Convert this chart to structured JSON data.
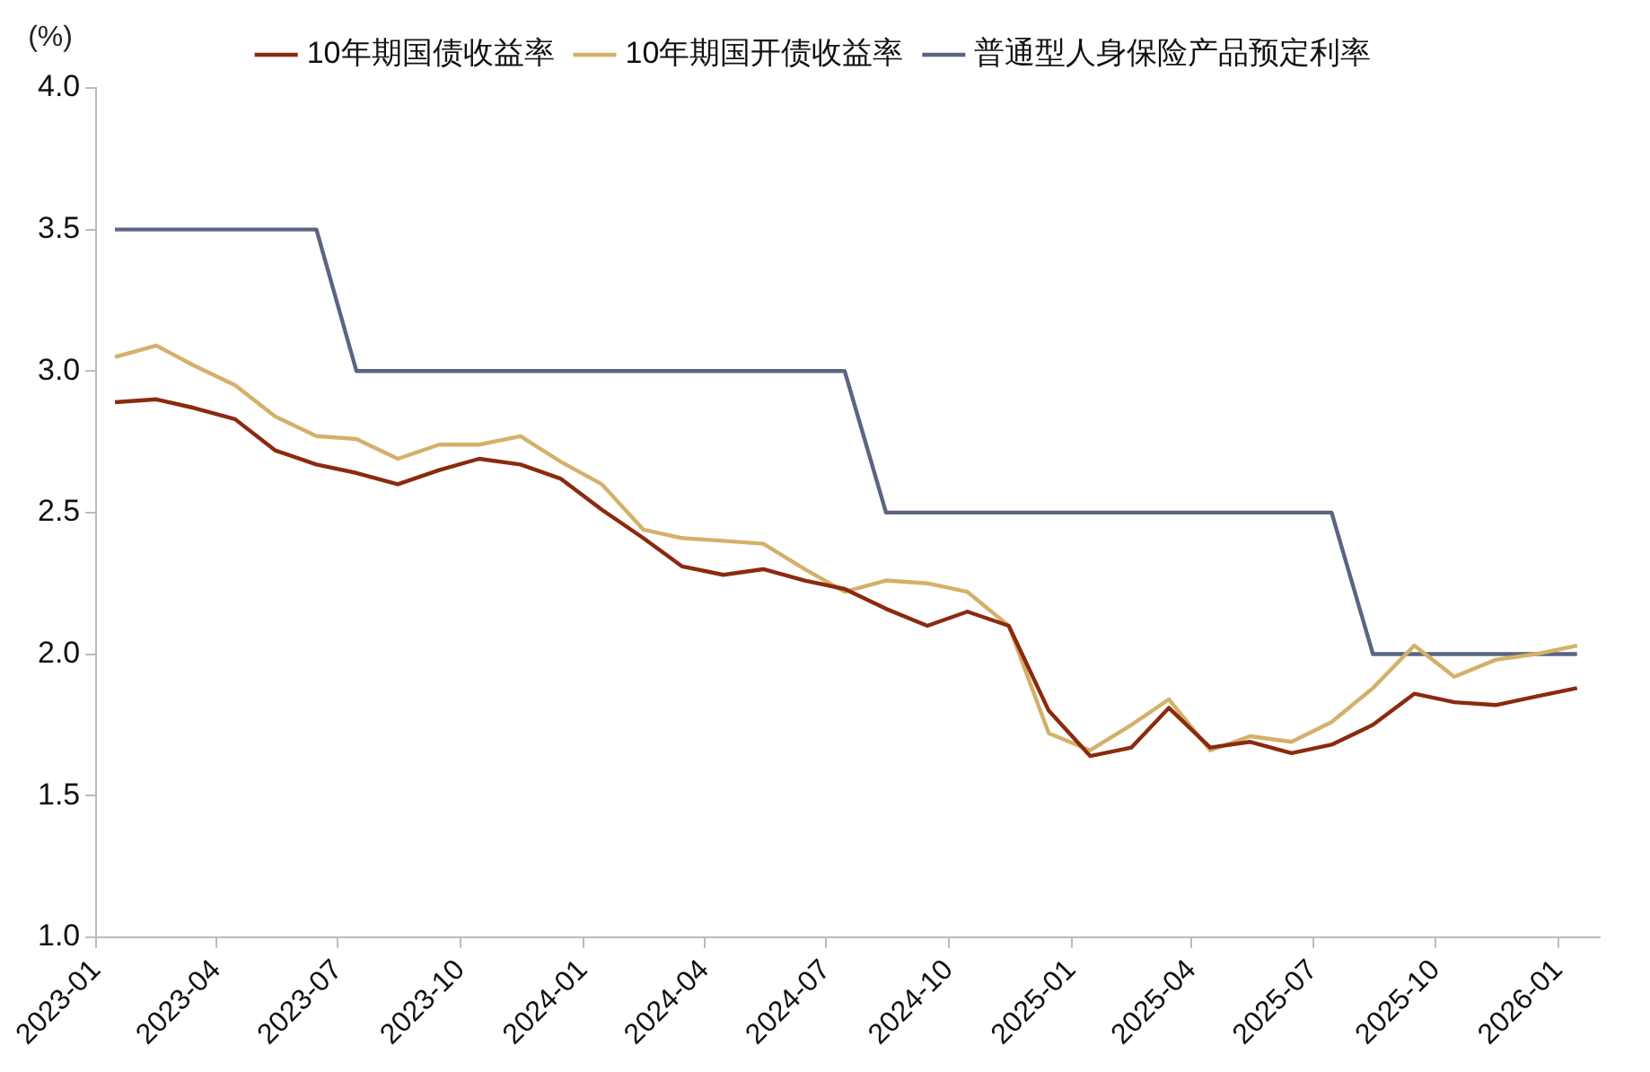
{
  "chart_data": {
    "type": "line",
    "ylabel": "(%)",
    "legend": "top",
    "grid": false,
    "marker": "none",
    "line_style": "solid",
    "x": [
      "2023-01-15",
      "2023-02-15",
      "2023-03-15",
      "2023-04-15",
      "2023-05-15",
      "2023-06-15",
      "2023-07-15",
      "2023-08-15",
      "2023-09-15",
      "2023-10-15",
      "2023-11-15",
      "2023-12-15",
      "2024-01-15",
      "2024-02-15",
      "2024-03-15",
      "2024-04-15",
      "2024-05-15",
      "2024-06-15",
      "2024-07-15",
      "2024-08-15",
      "2024-09-15",
      "2024-10-15",
      "2024-11-15",
      "2024-12-15",
      "2025-01-15",
      "2025-02-15",
      "2025-03-15",
      "2025-04-15",
      "2025-05-15",
      "2025-06-15",
      "2025-07-15",
      "2025-08-15",
      "2025-09-15",
      "2025-10-15",
      "2025-11-15",
      "2025-12-15",
      "2026-01-15"
    ],
    "xlim": [
      "2023-01-01",
      "2026-02-01"
    ],
    "xticks": [
      "2023-01",
      "2023-04",
      "2023-07",
      "2023-10",
      "2024-01",
      "2024-04",
      "2024-07",
      "2024-10",
      "2025-01",
      "2025-04",
      "2025-07",
      "2025-10",
      "2026-01"
    ],
    "ylim": [
      1.0,
      4.0
    ],
    "yticks": [
      {
        "value": 1,
        "label": "1.0"
      },
      {
        "value": 1.5,
        "label": "1.5"
      },
      {
        "value": 2,
        "label": "2.0"
      },
      {
        "value": 2.5,
        "label": "2.5"
      },
      {
        "value": 3,
        "label": "3.0"
      },
      {
        "value": 3.5,
        "label": "3.5"
      },
      {
        "value": 4,
        "label": "4.0"
      }
    ],
    "series": [
      {
        "name": "10年期国债收益率",
        "color": "#8b2a0e",
        "values": [
          2.89,
          2.9,
          2.87,
          2.83,
          2.72,
          2.67,
          2.64,
          2.6,
          2.65,
          2.69,
          2.67,
          2.62,
          2.51,
          2.41,
          2.31,
          2.28,
          2.3,
          2.26,
          2.23,
          2.16,
          2.1,
          2.15,
          2.1,
          1.8,
          1.64,
          1.67,
          1.81,
          1.67,
          1.69,
          1.65,
          1.68,
          1.75,
          1.86,
          1.83,
          1.82,
          1.85,
          1.88
        ]
      },
      {
        "name": "10年期国开债收益率",
        "color": "#d4b06a",
        "values": [
          3.05,
          3.09,
          3.02,
          2.95,
          2.84,
          2.77,
          2.76,
          2.69,
          2.74,
          2.74,
          2.77,
          2.68,
          2.6,
          2.44,
          2.41,
          2.4,
          2.39,
          2.3,
          2.22,
          2.26,
          2.25,
          2.22,
          2.1,
          1.72,
          1.66,
          1.75,
          1.84,
          1.66,
          1.71,
          1.69,
          1.76,
          1.88,
          2.03,
          1.92,
          1.98,
          2.0,
          2.03
        ]
      },
      {
        "name": "普通型人身保险产品预定利率",
        "color": "#5b6582",
        "values": [
          3.5,
          3.5,
          3.5,
          3.5,
          3.5,
          3.5,
          3.0,
          3.0,
          3.0,
          3.0,
          3.0,
          3.0,
          3.0,
          3.0,
          3.0,
          3.0,
          3.0,
          3.0,
          3.0,
          2.5,
          2.5,
          2.5,
          2.5,
          2.5,
          2.5,
          2.5,
          2.5,
          2.5,
          2.5,
          2.5,
          2.5,
          2.0,
          2.0,
          2.0,
          2.0,
          2.0,
          2.0
        ]
      }
    ]
  }
}
